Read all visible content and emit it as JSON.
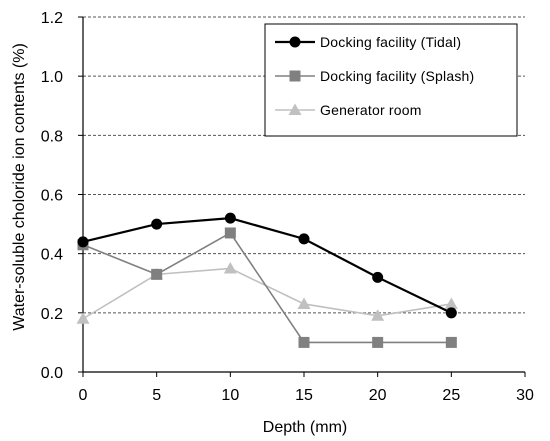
{
  "chart_data": {
    "type": "line",
    "xlabel": "Depth (mm)",
    "ylabel": "Water-soluble choloride ion contents (%)",
    "xlim": [
      0,
      30
    ],
    "ylim": [
      0.0,
      1.2
    ],
    "xticks": [
      "0",
      "5",
      "10",
      "15",
      "20",
      "25",
      "30"
    ],
    "yticks": [
      "0.0",
      "0.2",
      "0.4",
      "0.6",
      "0.8",
      "1.0",
      "1.2"
    ],
    "grid": "horizontal dashed",
    "legend_position": "top-right",
    "series": [
      {
        "name": "Docking facility (Tidal)",
        "marker": "circle",
        "color": "#000000",
        "x": [
          0,
          5,
          10,
          15,
          20,
          25
        ],
        "y": [
          0.44,
          0.5,
          0.52,
          0.45,
          0.32,
          0.2
        ]
      },
      {
        "name": "Docking facility (Splash)",
        "marker": "square",
        "color": "#808080",
        "x": [
          0,
          5,
          10,
          15,
          20,
          25
        ],
        "y": [
          0.43,
          0.33,
          0.47,
          0.1,
          0.1,
          0.1
        ]
      },
      {
        "name": "Generator room",
        "marker": "triangle",
        "color": "#c0c0c0",
        "x": [
          0,
          5,
          10,
          15,
          20,
          25
        ],
        "y": [
          0.18,
          0.33,
          0.35,
          0.23,
          0.19,
          0.23
        ]
      }
    ]
  }
}
